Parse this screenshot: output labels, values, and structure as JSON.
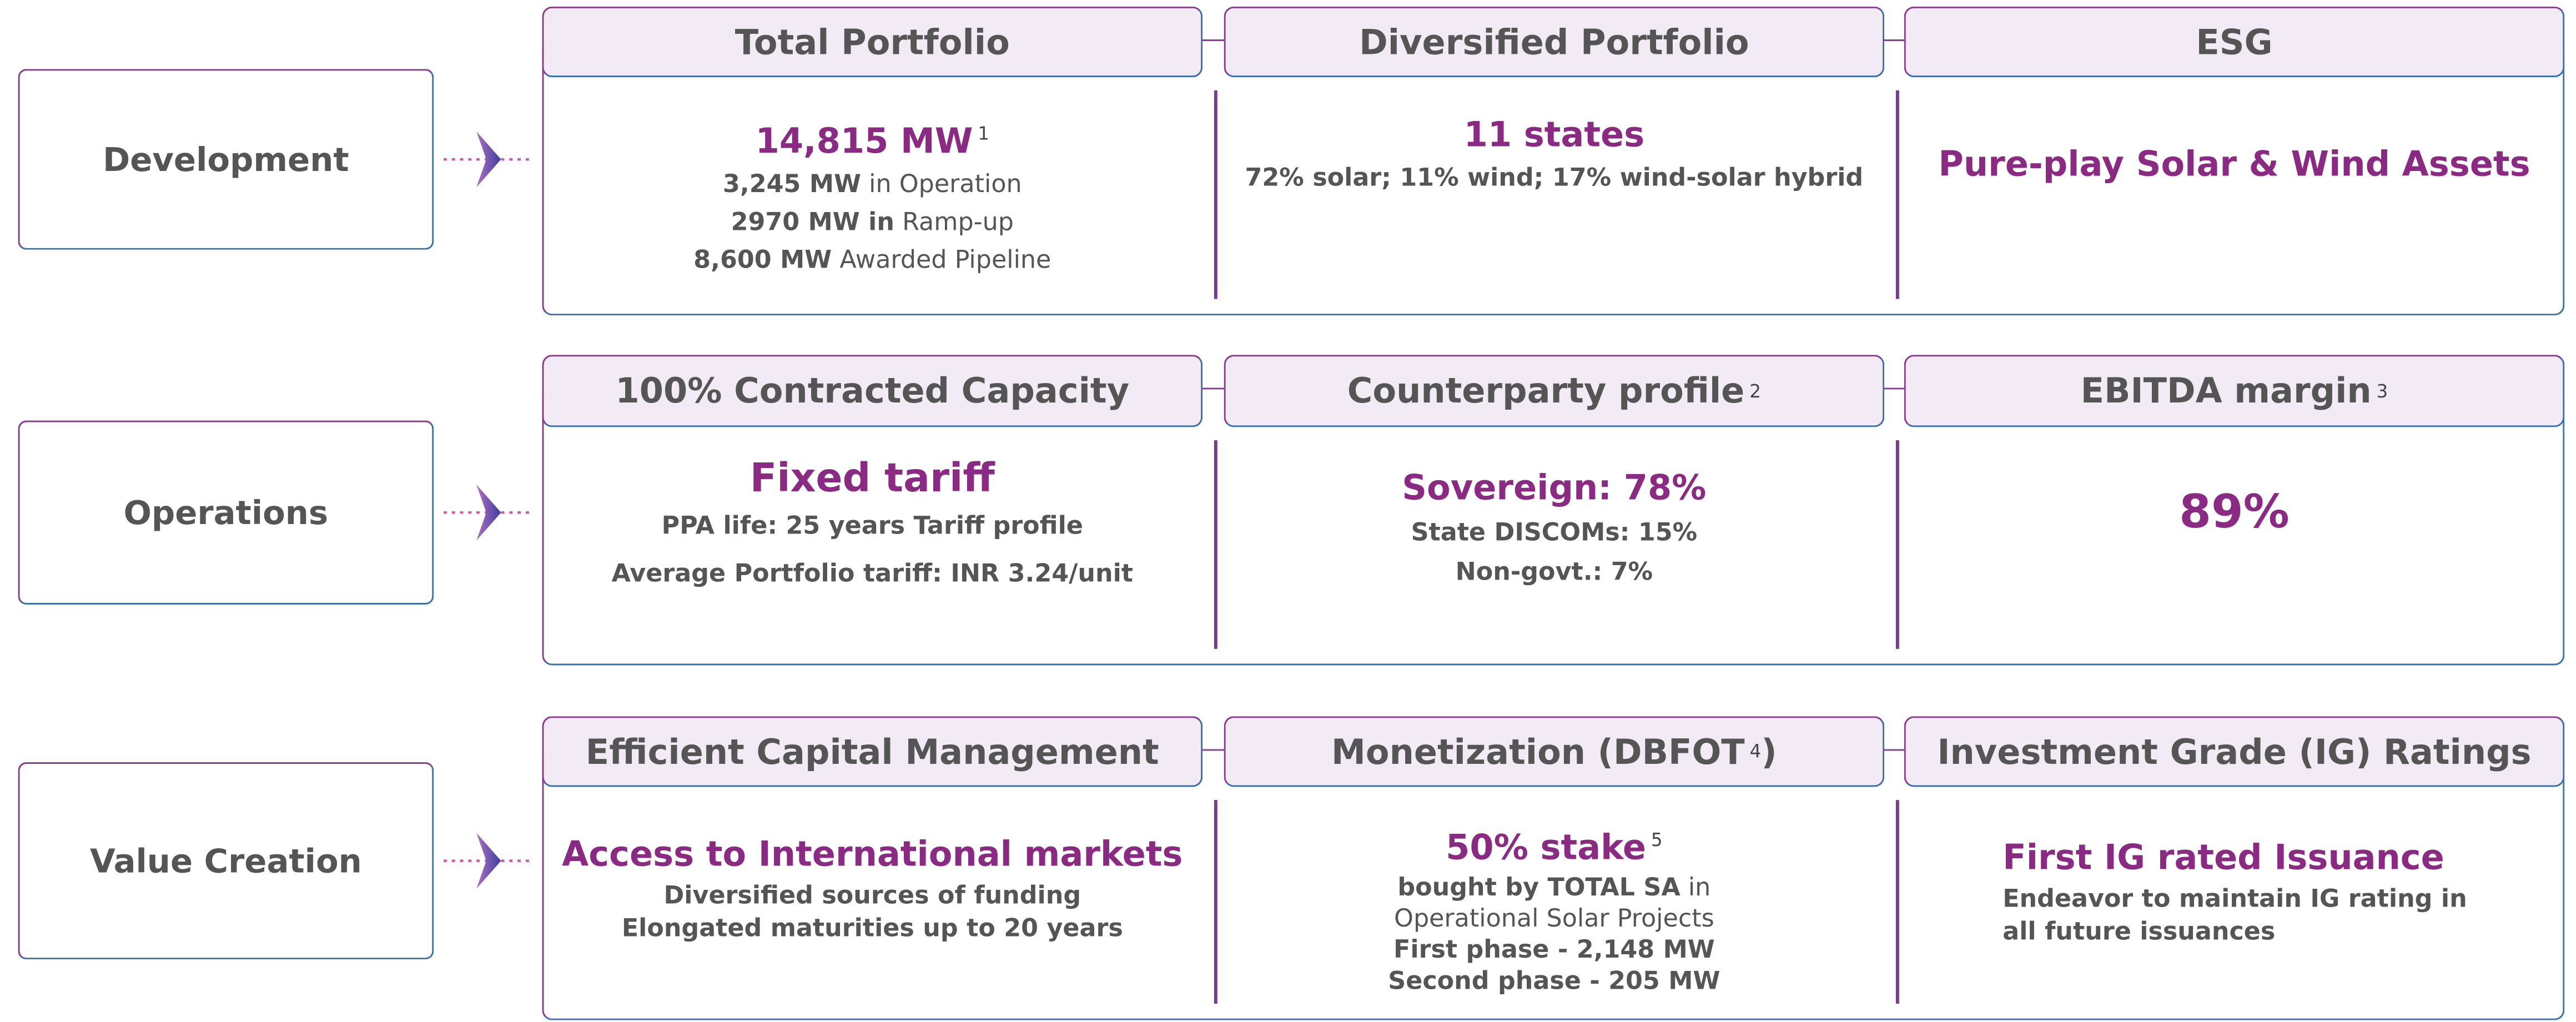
{
  "rows": [
    {
      "label": "Development",
      "columns": [
        {
          "header": [
            {
              "text": "Total Portfolio",
              "style": "normal"
            }
          ],
          "highlight": [
            {
              "text": "14,815 MW",
              "style": "normal"
            },
            {
              "text": "1",
              "style": "sup"
            }
          ],
          "lines": [
            [
              {
                "text": "3,245 MW",
                "style": "bold"
              },
              {
                "text": " in Operation",
                "style": "normal"
              }
            ],
            [
              {
                "text": "2970 MW in",
                "style": "bold"
              },
              {
                "text": " Ramp-up",
                "style": "normal"
              }
            ],
            [
              {
                "text": "8,600 MW",
                "style": "bold"
              },
              {
                "text": " Awarded Pipeline",
                "style": "normal"
              }
            ]
          ]
        },
        {
          "header": [
            {
              "text": "Diversified Portfolio",
              "style": "normal"
            }
          ],
          "highlight": [
            {
              "text": "11 states",
              "style": "normal"
            }
          ],
          "lines": [
            [
              {
                "text": "72% solar; 11% wind; 17% wind-solar hybrid",
                "style": "medium"
              }
            ]
          ]
        },
        {
          "header": [
            {
              "text": "ESG",
              "style": "normal"
            }
          ],
          "highlight": [
            {
              "text": "Pure-play Solar & Wind Assets",
              "style": "normal"
            }
          ],
          "lines": []
        }
      ]
    },
    {
      "label": "Operations",
      "columns": [
        {
          "header": [
            {
              "text": "100% Contracted Capacity",
              "style": "normal"
            }
          ],
          "highlight": [
            {
              "text": "Fixed tariff",
              "style": "normal"
            }
          ],
          "lines": [
            [
              {
                "text": "PPA life: 25 years Tariff profile",
                "style": "bold"
              }
            ],
            [
              {
                "text": "Average Portfolio tariff: INR 3.24/unit",
                "style": "medium"
              }
            ]
          ]
        },
        {
          "header": [
            {
              "text": "Counterparty profile",
              "style": "normal"
            },
            {
              "text": "2",
              "style": "sup"
            }
          ],
          "highlight": [
            {
              "text": "Sovereign: 78%",
              "style": "normal"
            }
          ],
          "lines": [
            [
              {
                "text": "State DISCOMs: 15%",
                "style": "medium"
              }
            ],
            [
              {
                "text": "Non-govt.: 7%",
                "style": "medium"
              }
            ]
          ]
        },
        {
          "header": [
            {
              "text": "EBITDA margin",
              "style": "normal"
            },
            {
              "text": "3",
              "style": "sup"
            }
          ],
          "highlight": [
            {
              "text": "89%",
              "style": "normal"
            }
          ],
          "lines": []
        }
      ]
    },
    {
      "label": "Value Creation",
      "columns": [
        {
          "header": [
            {
              "text": "Efficient Capital Management",
              "style": "normal"
            }
          ],
          "highlight": [
            {
              "text": "Access to International markets",
              "style": "normal"
            }
          ],
          "lines": [
            [
              {
                "text": "Diversified sources of funding",
                "style": "bold"
              }
            ],
            [
              {
                "text": "Elongated maturities up to 20 years",
                "style": "bold"
              }
            ]
          ]
        },
        {
          "header": [
            {
              "text": "Monetization (DBFOT",
              "style": "normal"
            },
            {
              "text": "4",
              "style": "sup"
            },
            {
              "text": ")",
              "style": "normal"
            }
          ],
          "highlight": [
            {
              "text": "50% stake",
              "style": "normal"
            },
            {
              "text": "5",
              "style": "sup"
            }
          ],
          "lines": [
            [
              {
                "text": "bought by TOTAL SA",
                "style": "bold"
              },
              {
                "text": " in",
                "style": "normal"
              }
            ],
            [
              {
                "text": "Operational Solar Projects",
                "style": "normal"
              }
            ],
            [
              {
                "text": "First phase -   2,148 MW",
                "style": "bold"
              }
            ],
            [
              {
                "text": "Second phase - 205 MW",
                "style": "bold"
              }
            ]
          ]
        },
        {
          "header": [
            {
              "text": "Investment Grade (IG) Ratings",
              "style": "normal"
            }
          ],
          "highlight": [
            {
              "text": "First IG rated Issuance",
              "style": "normal"
            }
          ],
          "lines": [
            [
              {
                "text": "Endeavor to maintain IG rating in",
                "style": "bold"
              }
            ],
            [
              {
                "text": "all future issuances",
                "style": "bold"
              }
            ]
          ]
        }
      ]
    }
  ]
}
